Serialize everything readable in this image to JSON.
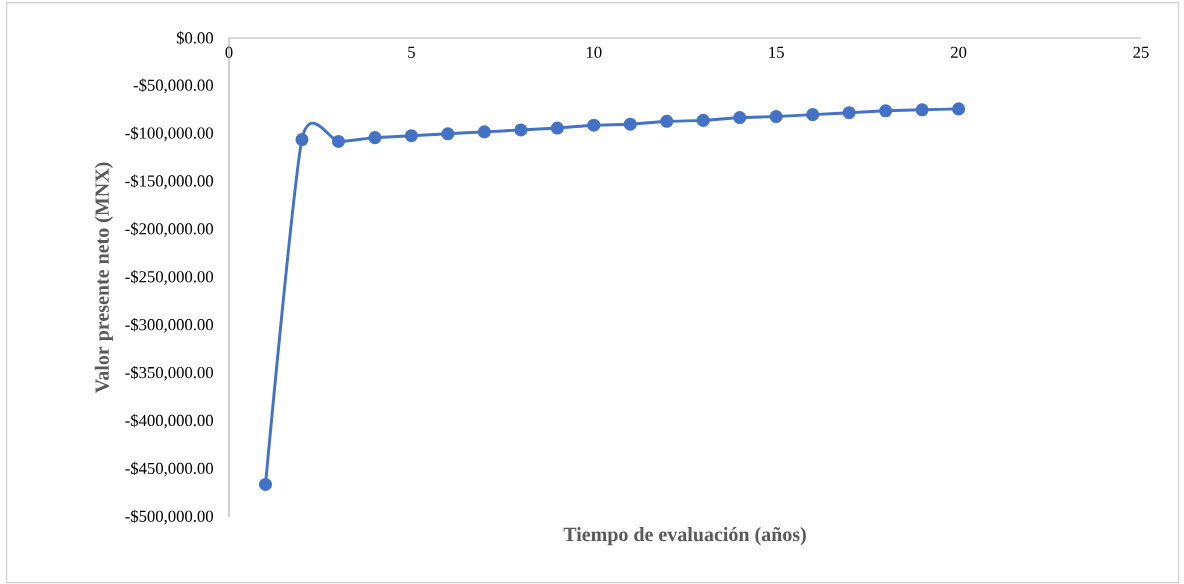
{
  "chart_data": {
    "type": "line",
    "xlabel": "Tiempo de evaluación (años)",
    "ylabel": "Valor presente neto (MNX)",
    "x": [
      1,
      2,
      3,
      4,
      5,
      6,
      7,
      8,
      9,
      10,
      11,
      12,
      13,
      14,
      15,
      16,
      17,
      18,
      19,
      20
    ],
    "series": [
      {
        "color": "#4472c4",
        "values": [
          -466000,
          -106000,
          -108000,
          -104000,
          -102000,
          -100000,
          -98000,
          -96000,
          -94000,
          -91000,
          -90000,
          -87000,
          -86000,
          -83000,
          -82000,
          -80000,
          -78000,
          -76000,
          -75000,
          -74000
        ]
      }
    ],
    "xlim": [
      0,
      25
    ],
    "xticks": [
      0,
      5,
      10,
      15,
      20,
      25
    ],
    "ylim": [
      -500000,
      0
    ],
    "yticks": [
      {
        "value": 0,
        "label": "$0.00"
      },
      {
        "value": -50000,
        "label": "-$50,000.00"
      },
      {
        "value": -100000,
        "label": "-$100,000.00"
      },
      {
        "value": -150000,
        "label": "-$150,000.00"
      },
      {
        "value": -200000,
        "label": "-$200,000.00"
      },
      {
        "value": -250000,
        "label": "-$250,000.00"
      },
      {
        "value": -300000,
        "label": "-$300,000.00"
      },
      {
        "value": -350000,
        "label": "-$350,000.00"
      },
      {
        "value": -400000,
        "label": "-$400,000.00"
      },
      {
        "value": -450000,
        "label": "-$450,000.00"
      },
      {
        "value": -500000,
        "label": "-$500,000.00"
      }
    ],
    "marker": "circle",
    "line_style": "solid"
  }
}
